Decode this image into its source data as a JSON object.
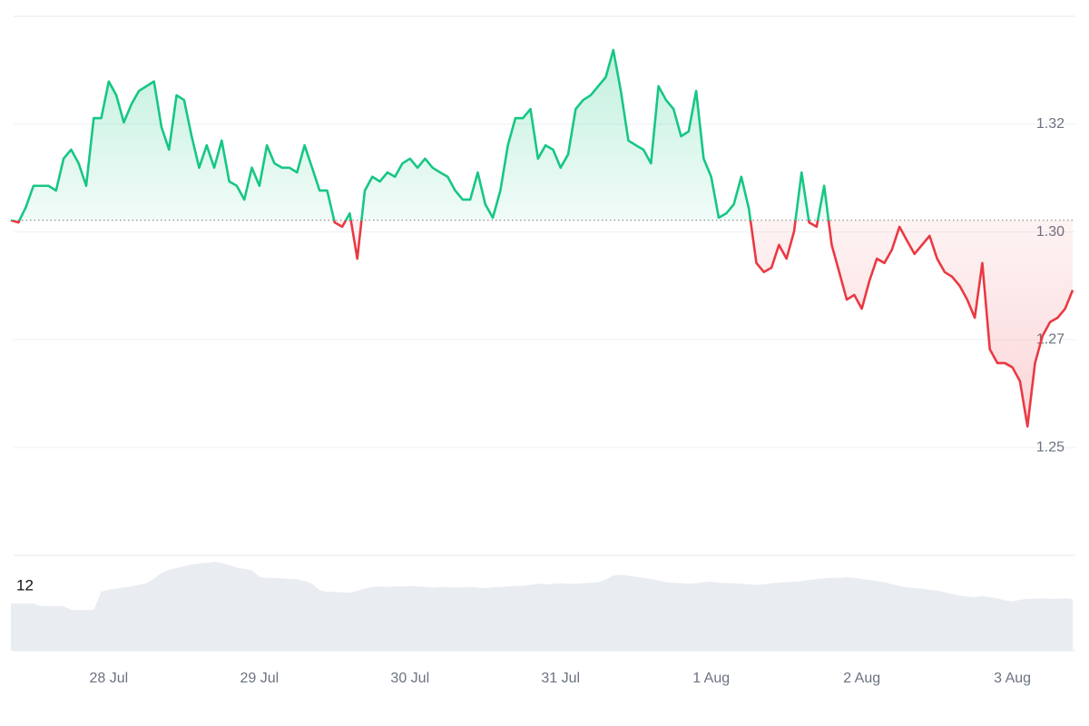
{
  "chart_data": {
    "type": "line",
    "categories": [
      null,
      null,
      null,
      null,
      null,
      null,
      null,
      null,
      null,
      null,
      null,
      null,
      null,
      "28 Jul",
      null,
      null,
      null,
      null,
      null,
      null,
      null,
      null,
      null,
      null,
      null,
      null,
      null,
      null,
      null,
      null,
      null,
      null,
      null,
      "29 Jul",
      null,
      null,
      null,
      null,
      null,
      null,
      null,
      null,
      null,
      null,
      null,
      null,
      null,
      null,
      null,
      null,
      null,
      null,
      null,
      "30 Jul",
      null,
      null,
      null,
      null,
      null,
      null,
      null,
      null,
      null,
      null,
      null,
      null,
      null,
      null,
      null,
      null,
      null,
      null,
      null,
      "31 Jul",
      null,
      null,
      null,
      null,
      null,
      null,
      null,
      null,
      null,
      null,
      null,
      null,
      null,
      null,
      null,
      null,
      null,
      null,
      null,
      "1 Aug",
      null,
      null,
      null,
      null,
      null,
      null,
      null,
      null,
      null,
      null,
      null,
      null,
      null,
      null,
      null,
      null,
      null,
      null,
      null,
      "2 Aug",
      null,
      null,
      null,
      null,
      null,
      null,
      null,
      null,
      null,
      null,
      null,
      null,
      null,
      null,
      null,
      null,
      null,
      null,
      null,
      "3 Aug",
      null,
      null,
      null,
      null,
      null,
      null,
      null,
      null
    ],
    "values": [
      1.3027,
      1.3022,
      1.3058,
      1.3107,
      1.3107,
      1.3107,
      1.3096,
      1.317,
      1.3191,
      1.3159,
      1.3107,
      1.3264,
      1.3264,
      1.3349,
      1.3317,
      1.3254,
      1.3296,
      1.3327,
      1.3338,
      1.3349,
      1.3243,
      1.3191,
      1.3317,
      1.3306,
      1.3222,
      1.3149,
      1.3201,
      1.3149,
      1.3212,
      1.3117,
      1.3107,
      1.3075,
      1.3149,
      1.3107,
      1.3201,
      1.3159,
      1.3149,
      1.3149,
      1.3138,
      1.3201,
      1.3149,
      1.3096,
      1.3096,
      1.3022,
      1.3012,
      1.3043,
      1.2938,
      1.3096,
      1.3128,
      1.3117,
      1.3138,
      1.3128,
      1.3159,
      1.317,
      1.3149,
      1.317,
      1.3149,
      1.3138,
      1.3128,
      1.3096,
      1.3075,
      1.3075,
      1.3138,
      1.3064,
      1.3033,
      1.3096,
      1.3201,
      1.3264,
      1.3264,
      1.3285,
      1.317,
      1.3201,
      1.3191,
      1.3149,
      1.318,
      1.3285,
      1.3306,
      1.3317,
      1.3338,
      1.3359,
      1.3422,
      1.3327,
      1.3212,
      1.3201,
      1.3191,
      1.3159,
      1.3338,
      1.3306,
      1.3285,
      1.3222,
      1.3233,
      1.3327,
      1.317,
      1.3128,
      1.3033,
      1.3043,
      1.3064,
      1.3128,
      1.3054,
      1.2928,
      1.2907,
      1.2917,
      1.297,
      1.2938,
      1.3001,
      1.3138,
      1.3022,
      1.3012,
      1.3107,
      1.297,
      1.2907,
      1.2843,
      1.2854,
      1.2822,
      1.2886,
      1.2938,
      1.2928,
      1.2959,
      1.3012,
      1.298,
      1.2949,
      1.297,
      1.2991,
      1.2938,
      1.2907,
      1.2896,
      1.2875,
      1.2843,
      1.2801,
      1.2928,
      1.2728,
      1.2696,
      1.2696,
      1.2686,
      1.2654,
      1.2549,
      1.2696,
      1.2759,
      1.2791,
      1.2801,
      1.2822,
      1.2865
    ],
    "up_color": "#16c784",
    "down_color": "#ea3943",
    "baseline": 1.3027,
    "ylim": [
      1.225,
      1.35
    ],
    "yticks": [
      1.25,
      {
        "value": 1.275,
        "label": "1.27"
      },
      {
        "value": 1.3,
        "label": "1.30"
      },
      {
        "value": 1.325,
        "label": "1.32"
      }
    ],
    "grid": true,
    "volume": {
      "color": "#e9ecf1",
      "ylim": [
        0,
        17.8
      ],
      "yticks": [
        12
      ],
      "values": [
        8.8,
        8.8,
        8.8,
        8.8,
        8.3,
        8.3,
        8.3,
        8.3,
        7.6,
        7.6,
        7.6,
        7.6,
        11.0,
        11.4,
        11.6,
        11.8,
        12.0,
        12.3,
        12.6,
        13.5,
        14.5,
        15.1,
        15.4,
        15.8,
        16.1,
        16.3,
        16.4,
        16.6,
        16.4,
        16.0,
        15.5,
        15.3,
        15.0,
        13.8,
        13.6,
        13.6,
        13.5,
        13.4,
        13.3,
        13.0,
        12.5,
        11.3,
        11.0,
        11.0,
        10.9,
        10.8,
        11.2,
        11.6,
        11.9,
        12.0,
        11.9,
        12.0,
        12.0,
        12.1,
        12.0,
        11.9,
        11.8,
        11.9,
        11.9,
        11.8,
        11.8,
        11.9,
        11.8,
        11.7,
        11.8,
        11.9,
        12.0,
        12.1,
        12.1,
        12.3,
        12.5,
        12.4,
        12.5,
        12.6,
        12.5,
        12.5,
        12.6,
        12.7,
        12.8,
        13.3,
        14.0,
        14.2,
        14.0,
        13.8,
        13.6,
        13.4,
        13.1,
        12.8,
        12.7,
        12.6,
        12.5,
        12.6,
        12.8,
        12.9,
        12.7,
        12.6,
        12.6,
        12.5,
        12.4,
        12.3,
        12.4,
        12.6,
        12.7,
        12.8,
        12.9,
        13.0,
        13.2,
        13.4,
        13.5,
        13.6,
        13.6,
        13.7,
        13.6,
        13.4,
        13.2,
        13.0,
        12.8,
        12.4,
        12.1,
        11.8,
        11.7,
        11.6,
        11.4,
        11.2,
        10.9,
        10.6,
        10.3,
        10.1,
        10.0,
        10.2,
        10.0,
        9.8,
        9.4,
        9.2,
        9.5,
        9.7,
        9.7,
        9.8,
        9.7,
        9.7,
        9.8,
        9.6
      ]
    }
  }
}
